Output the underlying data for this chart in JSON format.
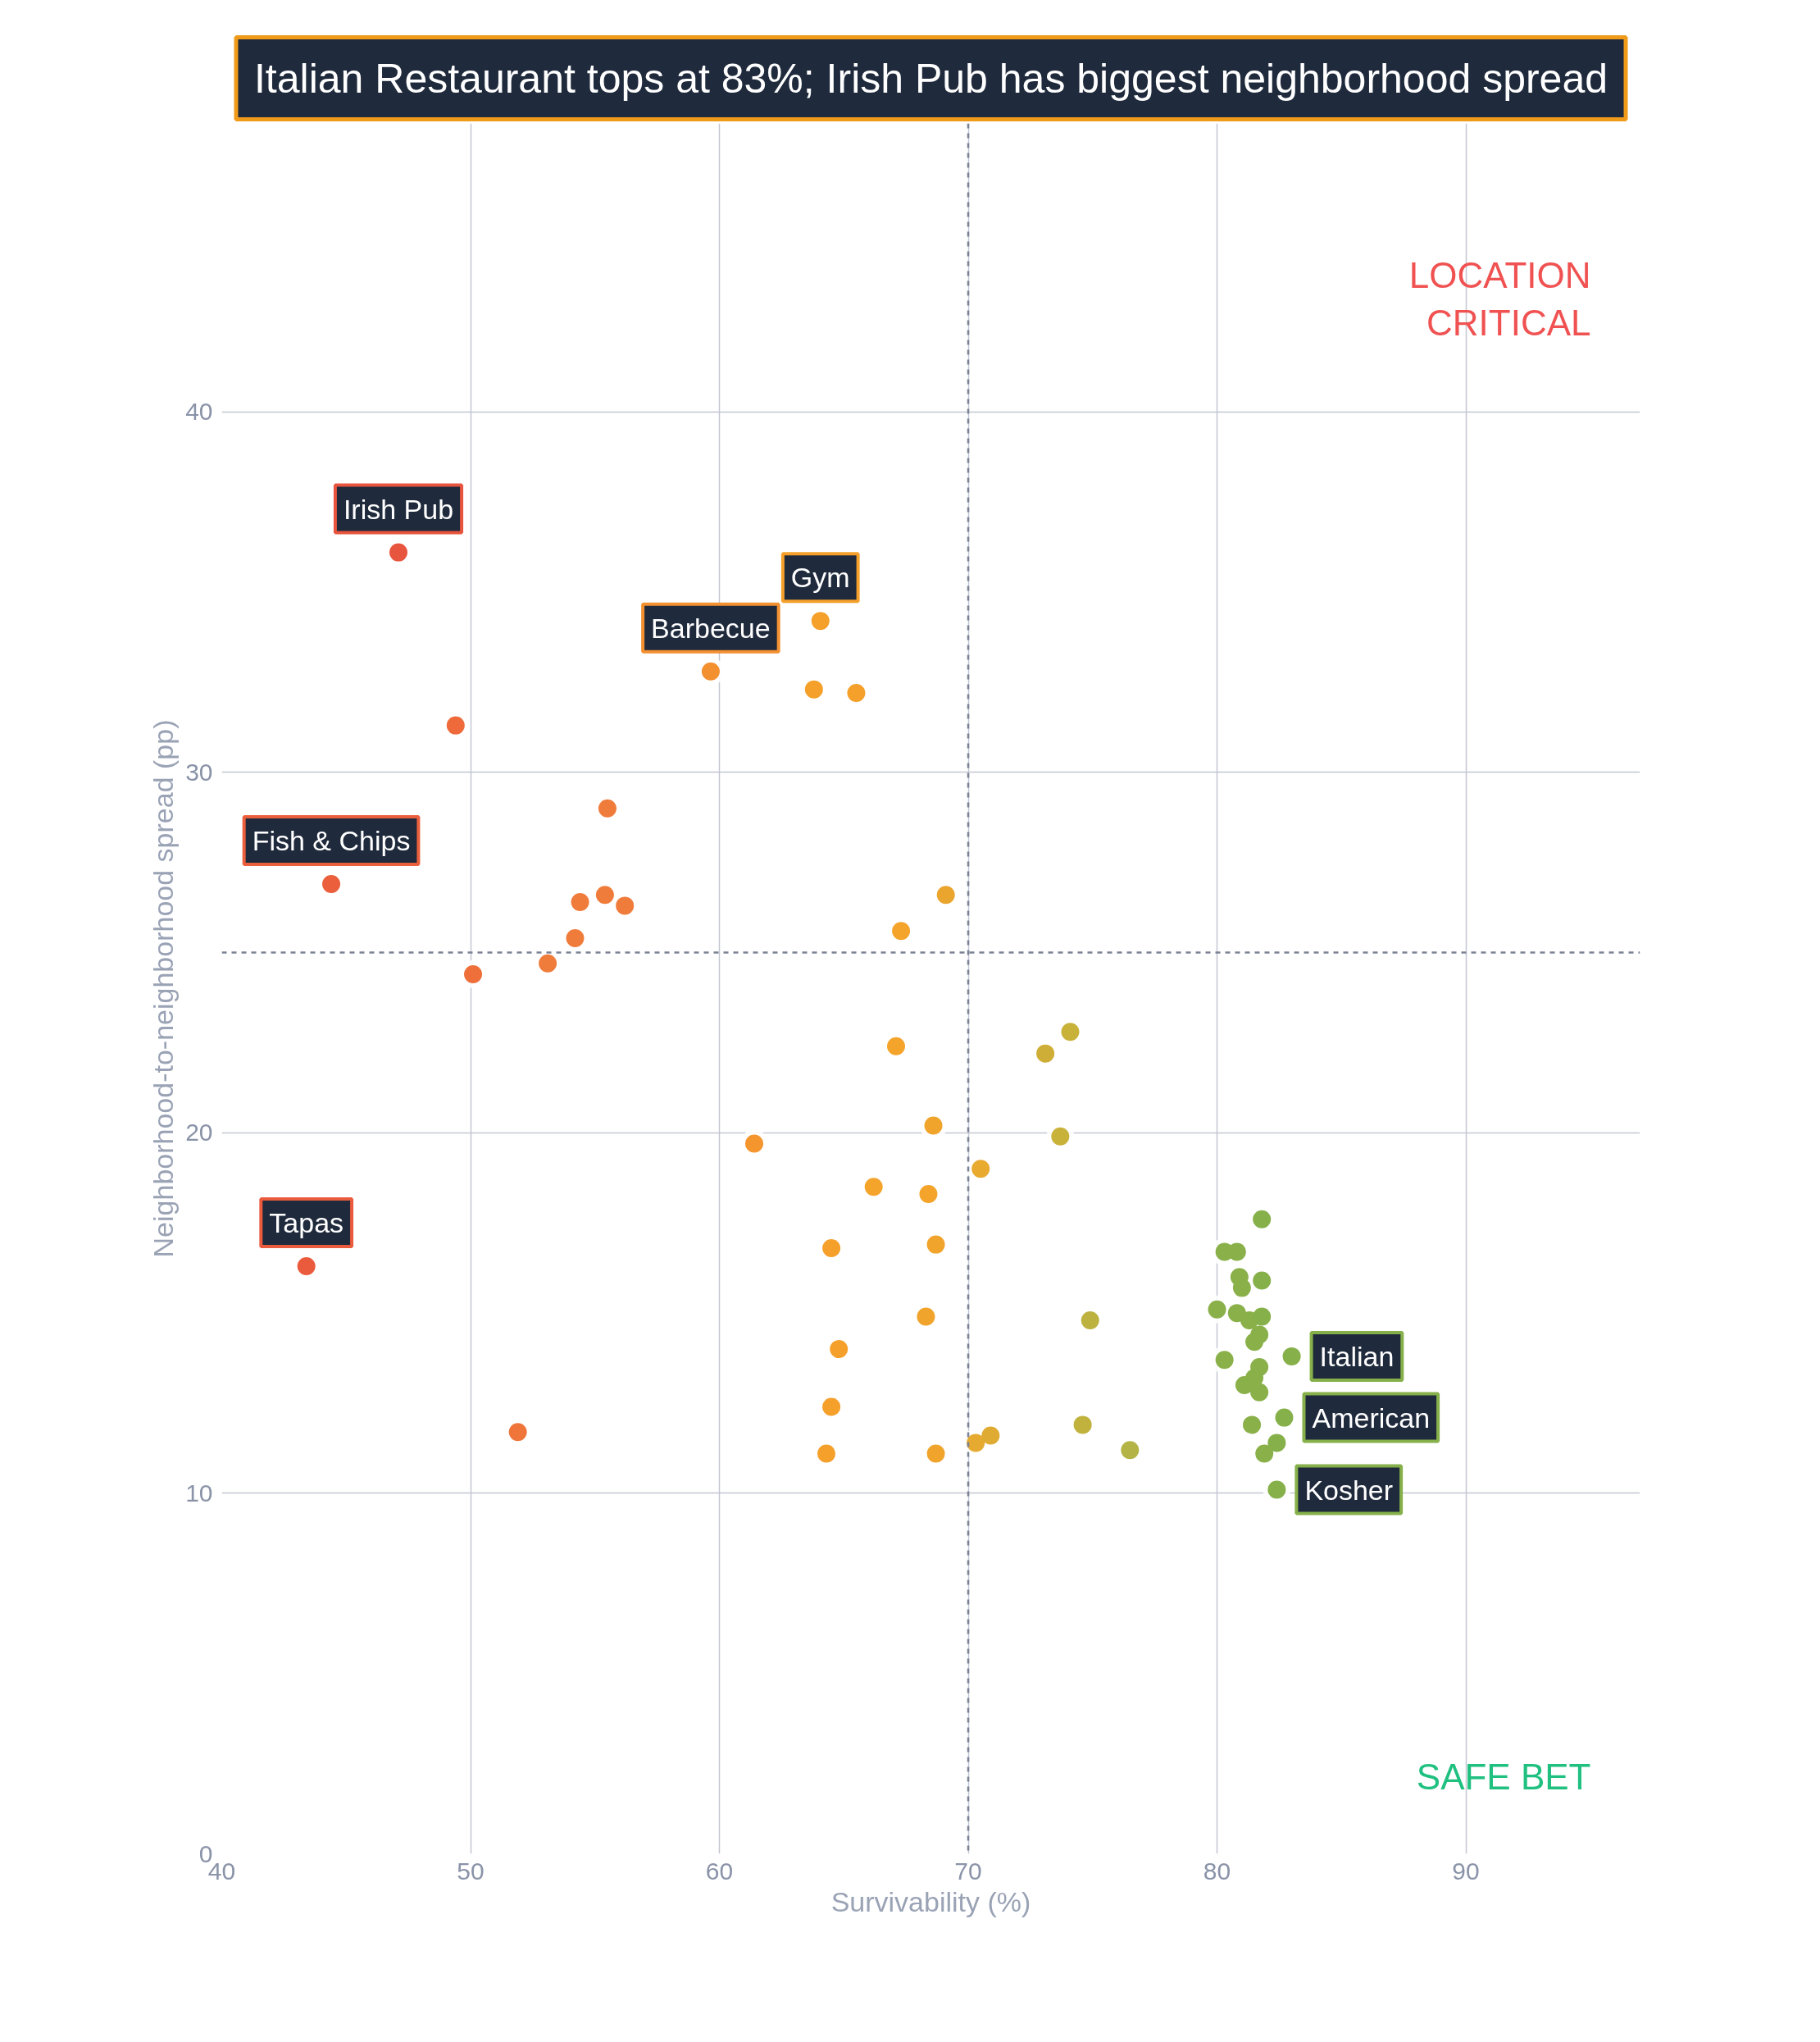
{
  "chart_data": {
    "type": "scatter",
    "title": "Italian Restaurant tops at 83%; Irish Pub has biggest neighborhood spread",
    "xlabel": "Survivability (%)",
    "ylabel": "Neighborhood-to-neighborhood spread (pp)",
    "xlim": [
      40,
      97
    ],
    "ylim": [
      0,
      48
    ],
    "xticks": [
      40,
      50,
      60,
      70,
      80,
      90
    ],
    "yticks": [
      0,
      10,
      20,
      30,
      40
    ],
    "grid": true,
    "marker": "circle",
    "ref_lines": [
      {
        "axis": "x",
        "value": 70,
        "line_style": "dashed",
        "color": "#7b8294"
      },
      {
        "axis": "y",
        "value": 25,
        "line_style": "dashed",
        "color": "#7b8294"
      }
    ],
    "series": [
      {
        "x": [
          47.1,
          44.4,
          43.4,
          49.4,
          55.5,
          54.4,
          55.4,
          56.2,
          54.2,
          53.1,
          50.1,
          51.9,
          59.65,
          64.06,
          63.8,
          65.5,
          69.1,
          67.3,
          67.1,
          61.4,
          68.6,
          70.5,
          66.2,
          68.4,
          64.5,
          68.7,
          68.3,
          64.8,
          64.5,
          64.3,
          68.7,
          70.3,
          70.9,
          74.1,
          73.1,
          73.7,
          74.9,
          74.6,
          76.5,
          83.0,
          82.7,
          82.4,
          81.9,
          81.8,
          80.3,
          80.8,
          80.9,
          81.8,
          81.0,
          80.0,
          80.8,
          81.3,
          81.8,
          81.7,
          81.5,
          80.3,
          81.7,
          81.5,
          81.1,
          81.7,
          81.4,
          82.4
        ],
        "values": [
          36.1,
          26.9,
          16.3,
          31.3,
          29.0,
          26.4,
          26.6,
          26.3,
          25.4,
          24.7,
          24.4,
          11.7,
          32.8,
          34.2,
          32.3,
          32.2,
          26.6,
          25.6,
          22.4,
          19.7,
          20.2,
          19.0,
          18.5,
          18.3,
          16.8,
          16.9,
          14.9,
          14.0,
          12.4,
          11.1,
          11.1,
          11.4,
          11.6,
          22.8,
          22.2,
          19.9,
          14.8,
          11.9,
          11.2,
          13.8,
          12.1,
          10.1,
          11.1,
          17.6,
          16.7,
          16.7,
          16.0,
          15.9,
          15.7,
          15.1,
          15.0,
          14.8,
          14.9,
          14.4,
          14.2,
          13.7,
          13.5,
          13.2,
          13.0,
          12.8,
          11.9,
          11.4
        ],
        "colors": [
          "#e8553e",
          "#eb5f3c",
          "#ea5a3d",
          "#ee6a3a",
          "#f07c3c",
          "#f07c3c",
          "#f07c3c",
          "#f07c3c",
          "#f07c3c",
          "#f07c3c",
          "#ee6f3a",
          "#ef753b",
          "#f39030",
          "#f5a02b",
          "#f5a02b",
          "#f5a02b",
          "#eaa52e",
          "#f5a42b",
          "#f5a42b",
          "#f5952e",
          "#f0a42b",
          "#e8aa2f",
          "#f5a42b",
          "#f5a42b",
          "#f5a02b",
          "#f0a42b",
          "#f0a42b",
          "#f5a02b",
          "#f5a02b",
          "#f5a02b",
          "#f0a42b",
          "#e6aa30",
          "#e0ab32",
          "#c9b23a",
          "#cfae38",
          "#c9b23a",
          "#bdb23f",
          "#c0b23d",
          "#b4b345",
          "#86b04a",
          "#86b04a",
          "#86b04a",
          "#8ab04a",
          "#86b04a",
          "#8ab04a",
          "#8ab04a",
          "#8ab04a",
          "#86b04a",
          "#8ab04a",
          "#8ab04a",
          "#8ab04a",
          "#8ab04a",
          "#86b04a",
          "#8ab04a",
          "#8ab04a",
          "#8ab04a",
          "#8ab04a",
          "#8ab04a",
          "#8ab04a",
          "#8ab04a",
          "#8ab04a",
          "#86b04a"
        ]
      }
    ],
    "annotations": [
      {
        "text": "Irish Pub",
        "x": 47.1,
        "y": 36.1
      },
      {
        "text": "Fish & Chips",
        "x": 44.4,
        "y": 26.9
      },
      {
        "text": "Tapas",
        "x": 43.4,
        "y": 16.3
      },
      {
        "text": "Barbecue",
        "x": 59.65,
        "y": 32.8
      },
      {
        "text": "Gym",
        "x": 64.06,
        "y": 34.2
      },
      {
        "text": "Italian",
        "x": 83.0,
        "y": 13.8
      },
      {
        "text": "American",
        "x": 82.7,
        "y": 12.1
      },
      {
        "text": "Kosher",
        "x": 82.4,
        "y": 10.1
      },
      "LOCATION CRITICAL",
      "SAFE BET"
    ]
  }
}
